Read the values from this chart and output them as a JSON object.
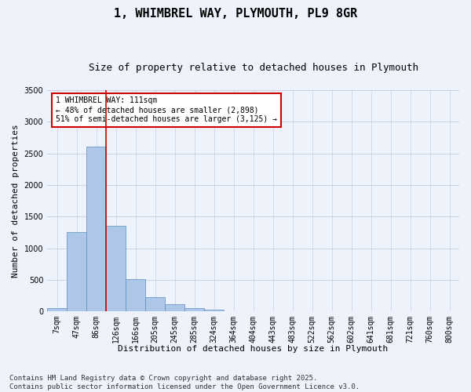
{
  "title": "1, WHIMBREL WAY, PLYMOUTH, PL9 8GR",
  "subtitle": "Size of property relative to detached houses in Plymouth",
  "xlabel": "Distribution of detached houses by size in Plymouth",
  "ylabel": "Number of detached properties",
  "categories": [
    "7sqm",
    "47sqm",
    "86sqm",
    "126sqm",
    "166sqm",
    "205sqm",
    "245sqm",
    "285sqm",
    "324sqm",
    "364sqm",
    "404sqm",
    "443sqm",
    "483sqm",
    "522sqm",
    "562sqm",
    "602sqm",
    "641sqm",
    "681sqm",
    "721sqm",
    "760sqm",
    "800sqm"
  ],
  "values": [
    50,
    1250,
    2610,
    1350,
    510,
    230,
    115,
    50,
    20,
    0,
    0,
    0,
    0,
    0,
    0,
    0,
    0,
    0,
    0,
    0,
    0
  ],
  "bar_color": "#aec6e8",
  "bar_edge_color": "#5a8fc0",
  "vline_x_index": 2.5,
  "vline_color": "#cc0000",
  "ylim": [
    0,
    3500
  ],
  "yticks": [
    0,
    500,
    1000,
    1500,
    2000,
    2500,
    3000,
    3500
  ],
  "annotation_text": "1 WHIMBREL WAY: 111sqm\n← 48% of detached houses are smaller (2,898)\n51% of semi-detached houses are larger (3,125) →",
  "annotation_box_color": "#ffffff",
  "annotation_box_edge": "#cc0000",
  "footer_text": "Contains HM Land Registry data © Crown copyright and database right 2025.\nContains public sector information licensed under the Open Government Licence v3.0.",
  "background_color": "#eef2fb",
  "grid_color": "#c8d0e8",
  "title_fontsize": 11,
  "subtitle_fontsize": 9,
  "axis_label_fontsize": 8,
  "tick_fontsize": 7,
  "annotation_fontsize": 7,
  "footer_fontsize": 6.5
}
